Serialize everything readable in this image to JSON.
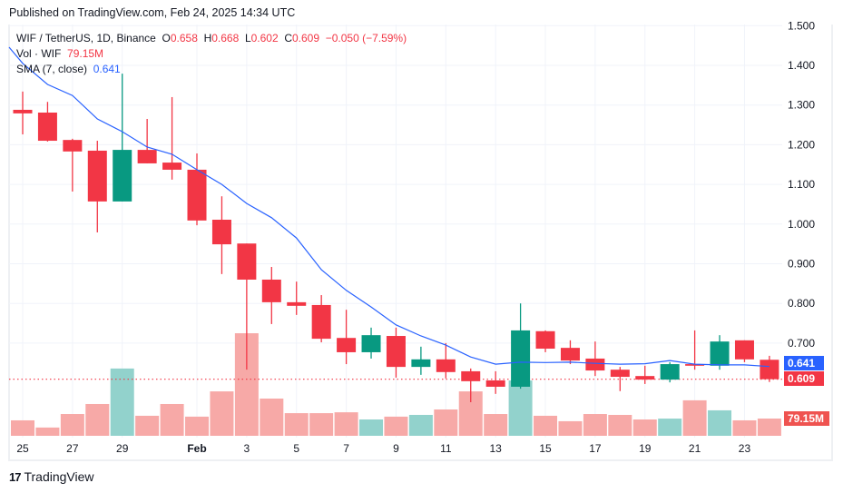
{
  "published": "Published on TradingView.com, Feb 24, 2025 14:34 UTC",
  "legend": {
    "symbol": "WIF / TetherUS, 1D, Binance",
    "o_label": "O",
    "o": "0.658",
    "h_label": "H",
    "h": "0.668",
    "l_label": "L",
    "l": "0.602",
    "c_label": "C",
    "c": "0.609",
    "change": "−0.050 (−7.59%)",
    "vol_label": "Vol · WIF",
    "vol": "79.15M",
    "sma_label": "SMA (7, close)",
    "sma": "0.641"
  },
  "price_tags": {
    "sma": "0.641",
    "close": "0.609",
    "volume": "79.15M"
  },
  "brand": {
    "logo_text": "TradingView"
  },
  "colors": {
    "up": "#089981",
    "down": "#f23645",
    "sma": "#2962ff",
    "vol_up": "#92d2cc",
    "vol_down": "#f7a9a7"
  },
  "chart_data": {
    "type": "candlestick",
    "dates": [
      "Jan 25",
      "Jan 26",
      "Jan 27",
      "Jan 28",
      "Jan 29",
      "Jan 30",
      "Jan 31",
      "Feb 1",
      "Feb 2",
      "Feb 3",
      "Feb 4",
      "Feb 5",
      "Feb 6",
      "Feb 7",
      "Feb 8",
      "Feb 9",
      "Feb 10",
      "Feb 11",
      "Feb 12",
      "Feb 13",
      "Feb 14",
      "Feb 15",
      "Feb 16",
      "Feb 17",
      "Feb 18",
      "Feb 19",
      "Feb 20",
      "Feb 21",
      "Feb 22",
      "Feb 23",
      "Feb 24"
    ],
    "open": [
      1.288,
      1.281,
      1.212,
      1.185,
      1.057,
      1.187,
      1.155,
      1.137,
      1.011,
      0.951,
      0.86,
      0.803,
      0.796,
      0.713,
      0.677,
      0.718,
      0.64,
      0.659,
      0.629,
      0.606,
      0.59,
      0.73,
      0.688,
      0.661,
      0.633,
      0.617,
      0.608,
      0.647,
      0.643,
      0.707,
      0.658
    ],
    "high": [
      1.334,
      1.308,
      1.215,
      1.21,
      1.379,
      1.265,
      1.32,
      1.178,
      1.07,
      0.951,
      0.892,
      0.855,
      0.821,
      0.784,
      0.739,
      0.739,
      0.691,
      0.7,
      0.636,
      0.629,
      0.8,
      0.732,
      0.707,
      0.704,
      0.64,
      0.643,
      0.652,
      0.732,
      0.72,
      0.707,
      0.668
    ],
    "low": [
      1.226,
      1.208,
      1.082,
      0.979,
      1.057,
      1.153,
      1.112,
      0.997,
      0.874,
      0.633,
      0.748,
      0.771,
      0.702,
      0.647,
      0.661,
      0.613,
      0.62,
      0.611,
      0.551,
      0.572,
      0.585,
      0.677,
      0.647,
      0.617,
      0.579,
      0.597,
      0.601,
      0.633,
      0.633,
      0.652,
      0.602
    ],
    "close": [
      1.279,
      1.21,
      1.183,
      1.057,
      1.187,
      1.153,
      1.137,
      1.009,
      0.949,
      0.86,
      0.803,
      0.794,
      0.711,
      0.677,
      0.72,
      0.64,
      0.659,
      0.627,
      0.604,
      0.59,
      0.732,
      0.686,
      0.656,
      0.631,
      0.615,
      0.608,
      0.647,
      0.643,
      0.704,
      0.659,
      0.609
    ],
    "volume_millions": [
      71,
      38,
      100,
      146,
      309,
      92,
      146,
      88,
      204,
      471,
      171,
      104,
      104,
      108,
      75,
      88,
      96,
      121,
      204,
      100,
      254,
      92,
      67,
      100,
      96,
      75,
      79,
      163,
      117,
      71,
      79.15
    ],
    "sma7": [
      1.405,
      1.352,
      1.324,
      1.265,
      1.233,
      1.194,
      1.176,
      1.137,
      1.1,
      1.052,
      1.016,
      0.965,
      0.885,
      0.833,
      0.791,
      0.746,
      0.718,
      0.695,
      0.665,
      0.647,
      0.652,
      0.651,
      0.652,
      0.649,
      0.647,
      0.648,
      0.656,
      0.647,
      0.645,
      0.645,
      0.641
    ],
    "y_ticks": [
      "1.500",
      "1.400",
      "1.300",
      "1.200",
      "1.100",
      "1.000",
      "0.900",
      "0.800",
      "0.700"
    ],
    "x_ticks": [
      {
        "i": 0,
        "label": "25"
      },
      {
        "i": 2,
        "label": "27"
      },
      {
        "i": 4,
        "label": "29"
      },
      {
        "i": 7,
        "label": "Feb"
      },
      {
        "i": 9,
        "label": "3"
      },
      {
        "i": 11,
        "label": "5"
      },
      {
        "i": 13,
        "label": "7"
      },
      {
        "i": 15,
        "label": "9"
      },
      {
        "i": 17,
        "label": "11"
      },
      {
        "i": 19,
        "label": "13"
      },
      {
        "i": 21,
        "label": "15"
      },
      {
        "i": 23,
        "label": "17"
      },
      {
        "i": 25,
        "label": "19"
      },
      {
        "i": 27,
        "label": "21"
      },
      {
        "i": 29,
        "label": "23"
      }
    ],
    "ylim": [
      0.55,
      1.5
    ],
    "grid": true
  }
}
